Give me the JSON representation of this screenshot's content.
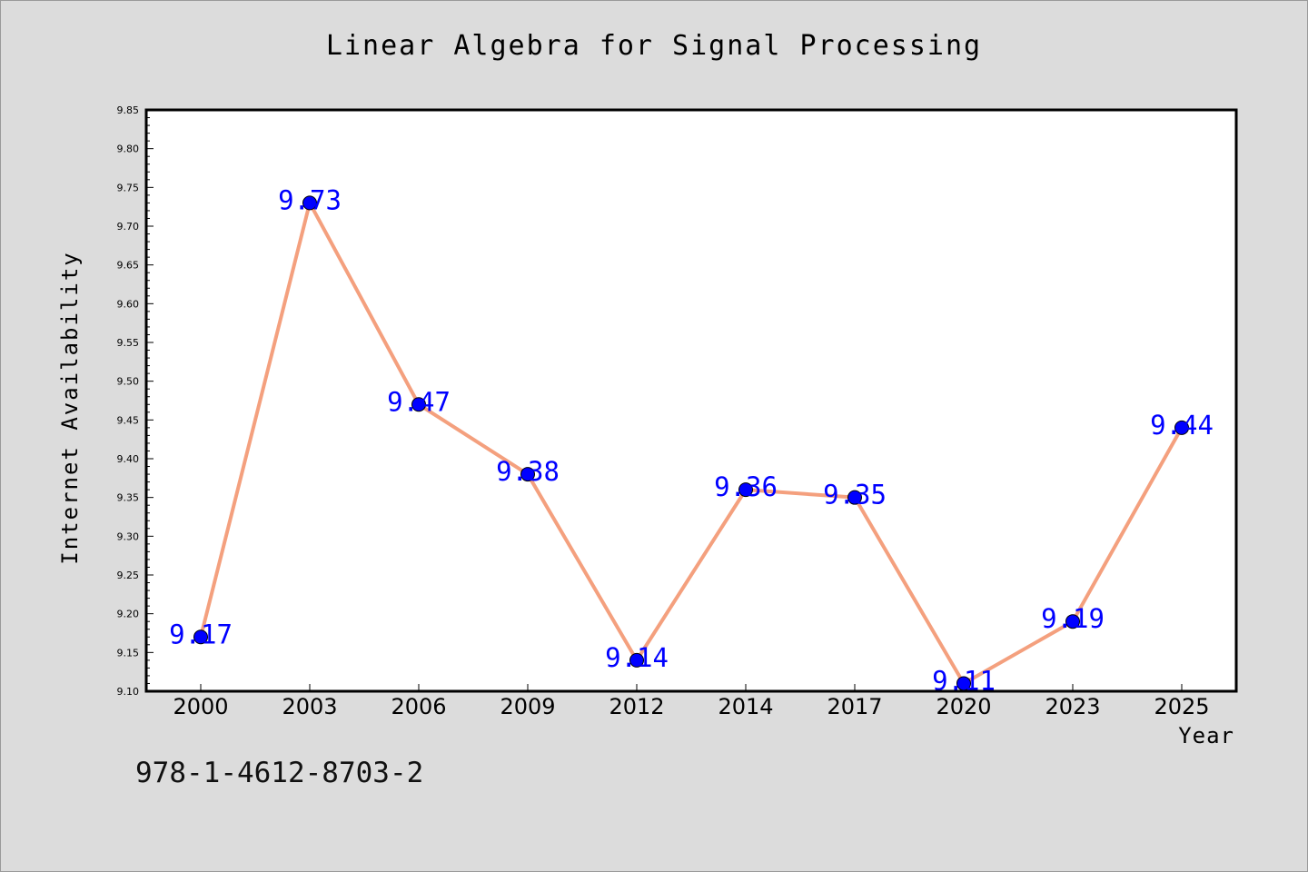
{
  "title": "Linear Algebra for Signal Processing",
  "footnote": "978-1-4612-8703-2",
  "colors": {
    "line": "#f4a07e",
    "marker": "#0000ff",
    "label": "#0000ff",
    "background": "#dcdcdc",
    "plot_bg": "#ffffff"
  },
  "chart_data": {
    "type": "line",
    "title": "Linear Algebra for Signal Processing",
    "xlabel": "Year",
    "ylabel": "Internet Availability",
    "categories": [
      "2000",
      "2003",
      "2006",
      "2009",
      "2012",
      "2014",
      "2017",
      "2020",
      "2023",
      "2025"
    ],
    "values": [
      9.17,
      9.73,
      9.47,
      9.38,
      9.14,
      9.36,
      9.35,
      9.11,
      9.19,
      9.44
    ],
    "data_labels": [
      "9.17",
      "9.73",
      "9.47",
      "9.38",
      "9.14",
      "9.36",
      "9.35",
      "9.11",
      "9.19",
      "9.44"
    ],
    "ylim": [
      9.1,
      9.85
    ],
    "yticks": [
      "9.10",
      "9.15",
      "9.20",
      "9.25",
      "9.30",
      "9.35",
      "9.40",
      "9.45",
      "9.50",
      "9.55",
      "9.60",
      "9.65",
      "9.70",
      "9.75",
      "9.80",
      "9.85"
    ],
    "grid": false,
    "legend": "none"
  }
}
